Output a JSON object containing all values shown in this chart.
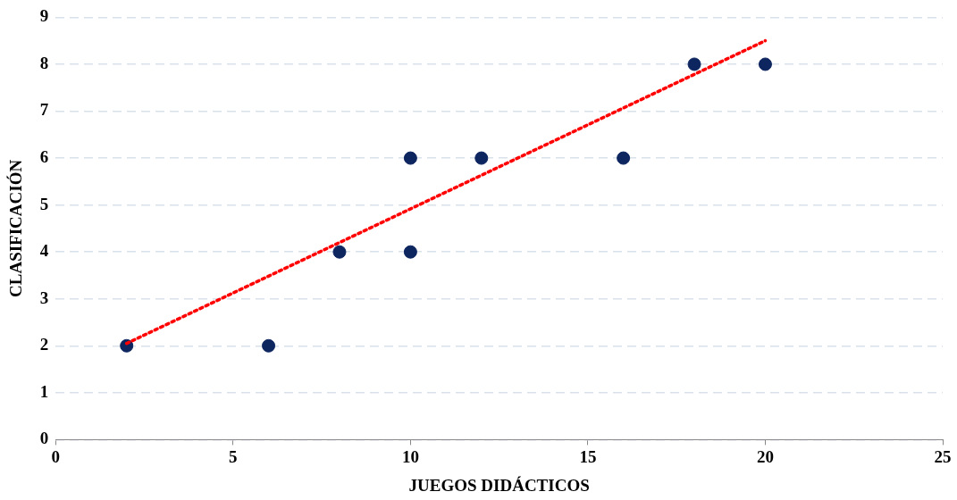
{
  "chart_data": {
    "type": "scatter",
    "xlabel": "JUEGOS DIDÁCTICOS",
    "ylabel": "CLASIFICACIÓN",
    "xlim": [
      0,
      25
    ],
    "xticks": [
      0,
      5,
      10,
      15,
      20,
      25
    ],
    "ylim": [
      0,
      9
    ],
    "yticks": [
      0,
      1,
      2,
      3,
      4,
      5,
      6,
      7,
      8,
      9
    ],
    "grid": "y",
    "legend": false,
    "series": [
      {
        "type": "scatter",
        "color": "#0e2660",
        "marker": "circle",
        "x": [
          2,
          6,
          8,
          10,
          10,
          12,
          16,
          18,
          20
        ],
        "values": [
          2,
          2,
          4,
          6,
          4,
          6,
          6,
          8,
          8
        ]
      },
      {
        "type": "line",
        "color": "#ff0000",
        "line_style": "dotted",
        "marker": "none",
        "x": [
          2,
          20
        ],
        "values": [
          2.05,
          8.5
        ]
      }
    ]
  }
}
